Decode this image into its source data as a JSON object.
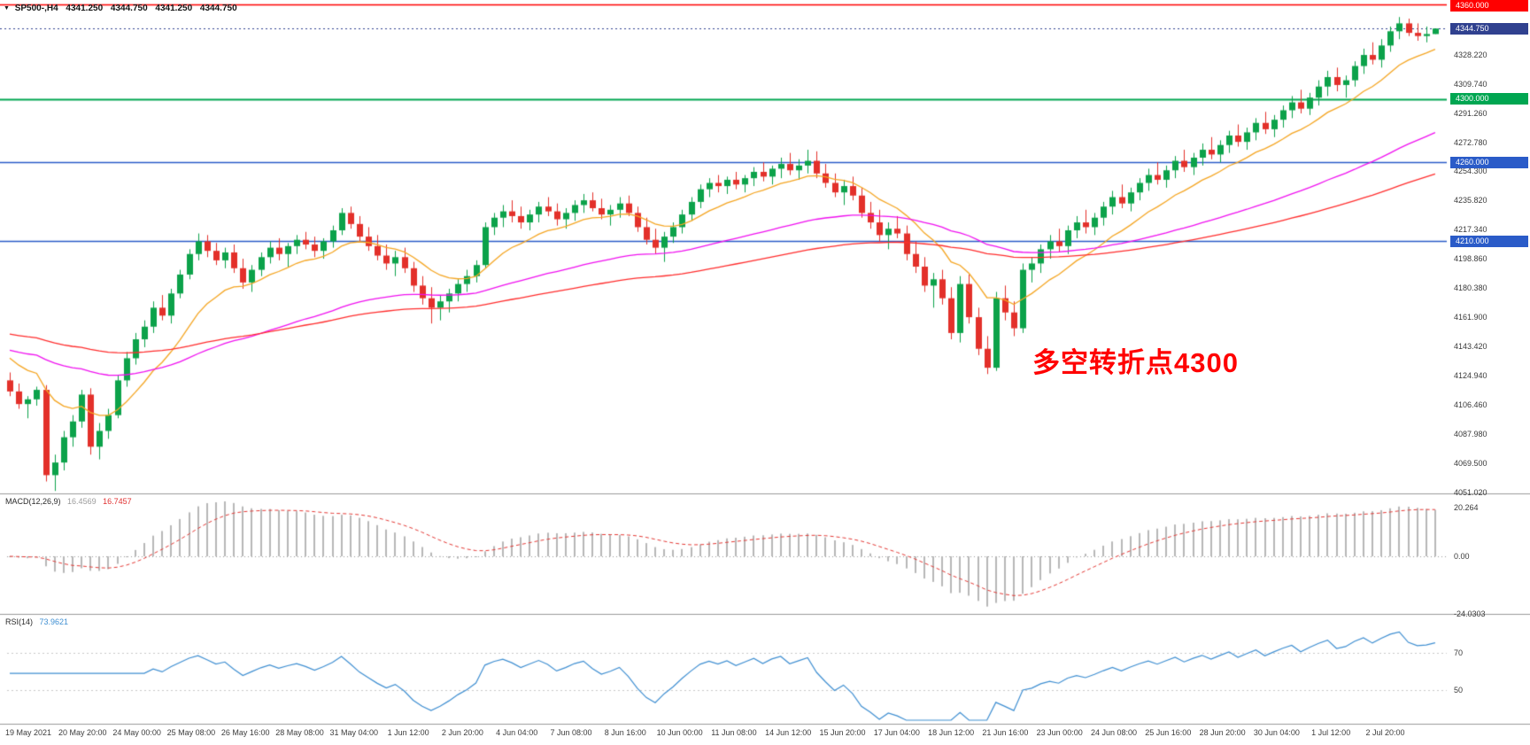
{
  "window": {
    "title_symbol": "SP500-,H4",
    "ohlc": {
      "open": "4341.250",
      "high": "4344.750",
      "low": "4341.250",
      "close": "4344.750"
    }
  },
  "annotation": {
    "text": "多空转折点4300",
    "color": "#ff0000"
  },
  "price_scale": {
    "labels": [
      "4328.220",
      "4309.740",
      "4291.260",
      "4272.780",
      "4254.300",
      "4235.820",
      "4217.340",
      "4198.860",
      "4180.380",
      "4161.900",
      "4143.420",
      "4124.940",
      "4106.460",
      "4087.980",
      "4069.500",
      "4051.020"
    ],
    "current": {
      "value": 4344.75,
      "label": "4344.750",
      "color": "#30418f"
    }
  },
  "hlines": [
    {
      "price": 4360,
      "label": "4360.000",
      "color": "#ff0000",
      "weight": 1.4
    },
    {
      "price": 4300,
      "label": "4300.000",
      "color": "#00a651",
      "weight": 2
    },
    {
      "price": 4260,
      "label": "4260.000",
      "color": "#2a5bc8",
      "weight": 1.6
    },
    {
      "price": 4210,
      "label": "4210.000",
      "color": "#2a5bc8",
      "weight": 1.6
    }
  ],
  "indicators": {
    "macd": {
      "label": "MACD(12,26,9)",
      "value_main": "16.4569",
      "value_signal": "16.7457",
      "axis": [
        "20.264",
        "0.00",
        "-24.0303"
      ],
      "params": {
        "fast": 12,
        "slow": 26,
        "signal": 9
      },
      "colors": {
        "hist": "#b8b8b8",
        "signal": "#e53935"
      }
    },
    "rsi": {
      "label": "RSI(14)",
      "value": "73.9621",
      "period": 14,
      "axis": [
        "70",
        "50"
      ],
      "color": "#3f8fd2"
    },
    "mas": [
      {
        "name": "ma-fast-orange",
        "period": 12,
        "seed": 4140,
        "color": "#f5a623"
      },
      {
        "name": "ma-mid-magenta",
        "period": 55,
        "seed": 4142,
        "color": "#f011f0"
      },
      {
        "name": "ma-slow-red",
        "period": 100,
        "seed": 4152,
        "color": "#ff2d2d"
      }
    ]
  },
  "chart_data": {
    "type": "candlestick",
    "symbol": "SP500-",
    "timeframe": "H4",
    "ylim": [
      4051,
      4360
    ],
    "colors": {
      "up": "#0ca24a",
      "down": "#e3302a"
    },
    "x_labels": [
      "19 May 2021",
      "20 May 20:00",
      "24 May 00:00",
      "25 May 08:00",
      "26 May 16:00",
      "28 May 08:00",
      "31 May 04:00",
      "1 Jun 12:00",
      "2 Jun 20:00",
      "4 Jun 04:00",
      "7 Jun 08:00",
      "8 Jun 16:00",
      "10 Jun 00:00",
      "11 Jun 08:00",
      "14 Jun 12:00",
      "15 Jun 20:00",
      "17 Jun 04:00",
      "18 Jun 12:00",
      "21 Jun 16:00",
      "23 Jun 00:00",
      "24 Jun 08:00",
      "25 Jun 16:00",
      "28 Jun 20:00",
      "30 Jun 04:00",
      "1 Jul 12:00",
      "2 Jul 20:00"
    ],
    "candles": [
      [
        4122,
        4127,
        4112,
        4115
      ],
      [
        4115,
        4120,
        4104,
        4107
      ],
      [
        4107,
        4112,
        4098,
        4110
      ],
      [
        4110,
        4118,
        4106,
        4116
      ],
      [
        4116,
        4119,
        4058,
        4062
      ],
      [
        4062,
        4075,
        4052,
        4070
      ],
      [
        4070,
        4090,
        4065,
        4086
      ],
      [
        4086,
        4100,
        4080,
        4096
      ],
      [
        4096,
        4116,
        4092,
        4113
      ],
      [
        4113,
        4117,
        4075,
        4080
      ],
      [
        4080,
        4095,
        4072,
        4090
      ],
      [
        4090,
        4104,
        4085,
        4100
      ],
      [
        4100,
        4125,
        4098,
        4122
      ],
      [
        4122,
        4140,
        4118,
        4136
      ],
      [
        4136,
        4152,
        4132,
        4148
      ],
      [
        4148,
        4160,
        4143,
        4156
      ],
      [
        4156,
        4172,
        4152,
        4168
      ],
      [
        4168,
        4176,
        4160,
        4163
      ],
      [
        4163,
        4180,
        4158,
        4177
      ],
      [
        4177,
        4192,
        4174,
        4189
      ],
      [
        4189,
        4205,
        4186,
        4202
      ],
      [
        4202,
        4215,
        4198,
        4210
      ],
      [
        4210,
        4214,
        4200,
        4204
      ],
      [
        4204,
        4209,
        4195,
        4198
      ],
      [
        4198,
        4206,
        4193,
        4203
      ],
      [
        4203,
        4208,
        4190,
        4193
      ],
      [
        4193,
        4199,
        4180,
        4184
      ],
      [
        4184,
        4195,
        4178,
        4192
      ],
      [
        4192,
        4203,
        4188,
        4200
      ],
      [
        4200,
        4210,
        4196,
        4206
      ],
      [
        4206,
        4212,
        4198,
        4202
      ],
      [
        4202,
        4209,
        4194,
        4207
      ],
      [
        4207,
        4214,
        4202,
        4211
      ],
      [
        4211,
        4216,
        4205,
        4208
      ],
      [
        4208,
        4213,
        4200,
        4204
      ],
      [
        4204,
        4212,
        4199,
        4210
      ],
      [
        4210,
        4220,
        4206,
        4217
      ],
      [
        4217,
        4231,
        4214,
        4228
      ],
      [
        4228,
        4232,
        4218,
        4221
      ],
      [
        4221,
        4226,
        4210,
        4213
      ],
      [
        4213,
        4219,
        4204,
        4207
      ],
      [
        4207,
        4214,
        4198,
        4201
      ],
      [
        4201,
        4208,
        4192,
        4196
      ],
      [
        4196,
        4204,
        4188,
        4200
      ],
      [
        4200,
        4206,
        4190,
        4193
      ],
      [
        4193,
        4197,
        4178,
        4182
      ],
      [
        4182,
        4188,
        4170,
        4174
      ],
      [
        4174,
        4181,
        4158,
        4168
      ],
      [
        4168,
        4176,
        4160,
        4172
      ],
      [
        4172,
        4180,
        4165,
        4177
      ],
      [
        4177,
        4186,
        4172,
        4183
      ],
      [
        4183,
        4192,
        4178,
        4188
      ],
      [
        4188,
        4198,
        4184,
        4195
      ],
      [
        4195,
        4222,
        4193,
        4219
      ],
      [
        4219,
        4228,
        4214,
        4225
      ],
      [
        4225,
        4233,
        4219,
        4229
      ],
      [
        4229,
        4236,
        4222,
        4226
      ],
      [
        4226,
        4232,
        4218,
        4222
      ],
      [
        4222,
        4230,
        4217,
        4227
      ],
      [
        4227,
        4235,
        4222,
        4232
      ],
      [
        4232,
        4238,
        4226,
        4229
      ],
      [
        4229,
        4234,
        4220,
        4224
      ],
      [
        4224,
        4231,
        4218,
        4228
      ],
      [
        4228,
        4236,
        4223,
        4233
      ],
      [
        4233,
        4240,
        4228,
        4236
      ],
      [
        4236,
        4241,
        4229,
        4231
      ],
      [
        4231,
        4237,
        4224,
        4227
      ],
      [
        4227,
        4233,
        4220,
        4230
      ],
      [
        4230,
        4238,
        4225,
        4234
      ],
      [
        4234,
        4239,
        4226,
        4228
      ],
      [
        4228,
        4232,
        4216,
        4219
      ],
      [
        4219,
        4225,
        4208,
        4211
      ],
      [
        4211,
        4218,
        4202,
        4206
      ],
      [
        4206,
        4216,
        4197,
        4213
      ],
      [
        4213,
        4222,
        4209,
        4219
      ],
      [
        4219,
        4230,
        4215,
        4227
      ],
      [
        4227,
        4238,
        4223,
        4235
      ],
      [
        4235,
        4246,
        4231,
        4243
      ],
      [
        4243,
        4250,
        4238,
        4247
      ],
      [
        4247,
        4252,
        4241,
        4245
      ],
      [
        4245,
        4251,
        4240,
        4249
      ],
      [
        4249,
        4254,
        4243,
        4246
      ],
      [
        4246,
        4252,
        4241,
        4250
      ],
      [
        4250,
        4257,
        4245,
        4254
      ],
      [
        4254,
        4260,
        4248,
        4251
      ],
      [
        4251,
        4258,
        4246,
        4256
      ],
      [
        4256,
        4263,
        4250,
        4259
      ],
      [
        4259,
        4266,
        4252,
        4255
      ],
      [
        4255,
        4262,
        4249,
        4258
      ],
      [
        4258,
        4268,
        4253,
        4261
      ],
      [
        4261,
        4267,
        4250,
        4253
      ],
      [
        4253,
        4259,
        4244,
        4247
      ],
      [
        4247,
        4253,
        4238,
        4241
      ],
      [
        4241,
        4249,
        4233,
        4245
      ],
      [
        4245,
        4251,
        4236,
        4239
      ],
      [
        4239,
        4244,
        4225,
        4228
      ],
      [
        4228,
        4235,
        4218,
        4222
      ],
      [
        4222,
        4230,
        4210,
        4214
      ],
      [
        4214,
        4222,
        4205,
        4218
      ],
      [
        4218,
        4226,
        4212,
        4215
      ],
      [
        4215,
        4220,
        4198,
        4202
      ],
      [
        4202,
        4210,
        4190,
        4194
      ],
      [
        4194,
        4200,
        4178,
        4182
      ],
      [
        4182,
        4190,
        4168,
        4186
      ],
      [
        4186,
        4192,
        4170,
        4174
      ],
      [
        4174,
        4181,
        4148,
        4152
      ],
      [
        4152,
        4188,
        4146,
        4183
      ],
      [
        4183,
        4189,
        4158,
        4162
      ],
      [
        4162,
        4168,
        4138,
        4142
      ],
      [
        4142,
        4150,
        4126,
        4130
      ],
      [
        4130,
        4178,
        4128,
        4174
      ],
      [
        4174,
        4182,
        4160,
        4165
      ],
      [
        4165,
        4172,
        4150,
        4155
      ],
      [
        4155,
        4196,
        4152,
        4192
      ],
      [
        4192,
        4200,
        4184,
        4196
      ],
      [
        4196,
        4208,
        4190,
        4205
      ],
      [
        4205,
        4214,
        4199,
        4210
      ],
      [
        4210,
        4218,
        4203,
        4207
      ],
      [
        4207,
        4220,
        4202,
        4217
      ],
      [
        4217,
        4226,
        4212,
        4222
      ],
      [
        4222,
        4230,
        4215,
        4219
      ],
      [
        4219,
        4228,
        4214,
        4225
      ],
      [
        4225,
        4235,
        4220,
        4232
      ],
      [
        4232,
        4242,
        4227,
        4238
      ],
      [
        4238,
        4246,
        4231,
        4234
      ],
      [
        4234,
        4244,
        4229,
        4241
      ],
      [
        4241,
        4250,
        4236,
        4247
      ],
      [
        4247,
        4256,
        4242,
        4252
      ],
      [
        4252,
        4260,
        4246,
        4249
      ],
      [
        4249,
        4258,
        4244,
        4255
      ],
      [
        4255,
        4264,
        4250,
        4261
      ],
      [
        4261,
        4268,
        4254,
        4257
      ],
      [
        4257,
        4266,
        4252,
        4263
      ],
      [
        4263,
        4272,
        4258,
        4268
      ],
      [
        4268,
        4276,
        4262,
        4265
      ],
      [
        4265,
        4274,
        4260,
        4271
      ],
      [
        4271,
        4280,
        4266,
        4277
      ],
      [
        4277,
        4284,
        4270,
        4273
      ],
      [
        4273,
        4282,
        4268,
        4279
      ],
      [
        4279,
        4288,
        4274,
        4285
      ],
      [
        4285,
        4292,
        4278,
        4281
      ],
      [
        4281,
        4290,
        4276,
        4287
      ],
      [
        4287,
        4296,
        4282,
        4293
      ],
      [
        4293,
        4302,
        4288,
        4298
      ],
      [
        4298,
        4306,
        4291,
        4294
      ],
      [
        4294,
        4304,
        4290,
        4301
      ],
      [
        4301,
        4312,
        4296,
        4308
      ],
      [
        4308,
        4318,
        4302,
        4314
      ],
      [
        4314,
        4320,
        4305,
        4309
      ],
      [
        4309,
        4315,
        4301,
        4312
      ],
      [
        4312,
        4324,
        4308,
        4321
      ],
      [
        4321,
        4332,
        4316,
        4328
      ],
      [
        4328,
        4336,
        4322,
        4325
      ],
      [
        4325,
        4338,
        4320,
        4334
      ],
      [
        4334,
        4346,
        4330,
        4343
      ],
      [
        4343,
        4352,
        4338,
        4348
      ],
      [
        4348,
        4351,
        4340,
        4342
      ],
      [
        4342,
        4348,
        4337,
        4340
      ],
      [
        4340,
        4346,
        4336,
        4341.25
      ],
      [
        4341.25,
        4344.75,
        4341.25,
        4344.75
      ]
    ]
  }
}
